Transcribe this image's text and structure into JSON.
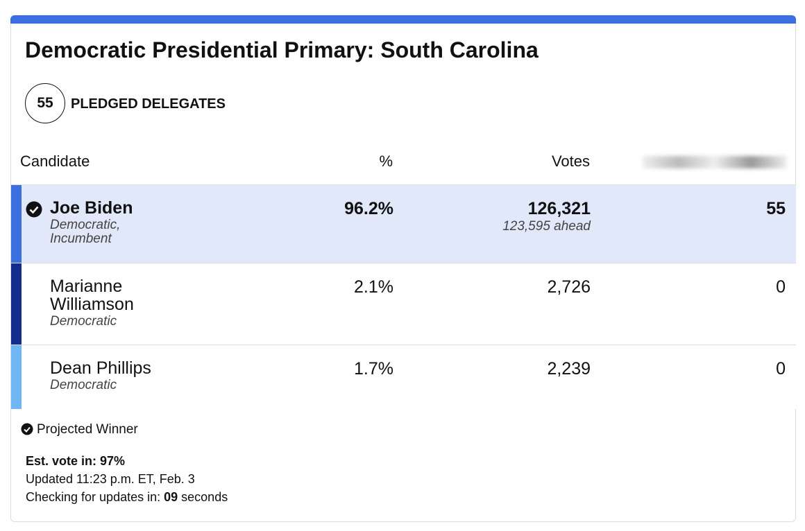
{
  "header": {
    "title": "Democratic Presidential Primary: South Carolina"
  },
  "delegates": {
    "count": "55",
    "label": "PLEDGED DELEGATES"
  },
  "table": {
    "columns": [
      "Candidate",
      "%",
      "Votes"
    ],
    "rows": [
      {
        "name": "Joe Biden",
        "party": "Democratic, Incumbent",
        "pct": "96.2%",
        "votes": "126,321",
        "ahead": "123,595 ahead",
        "delegates": "55"
      },
      {
        "name": "Marianne Williamson",
        "party": "Democratic",
        "pct": "2.1%",
        "votes": "2,726",
        "delegates": "0"
      },
      {
        "name": "Dean Phillips",
        "party": "Democratic",
        "pct": "1.7%",
        "votes": "2,239",
        "delegates": "0"
      }
    ]
  },
  "footer": {
    "legend": "Projected Winner",
    "est": "Est. vote in: 97%",
    "updated": "Updated 11:23 p.m. ET, Feb. 3",
    "checking": [
      "Checking for updates in: ",
      "09",
      " seconds"
    ]
  }
}
